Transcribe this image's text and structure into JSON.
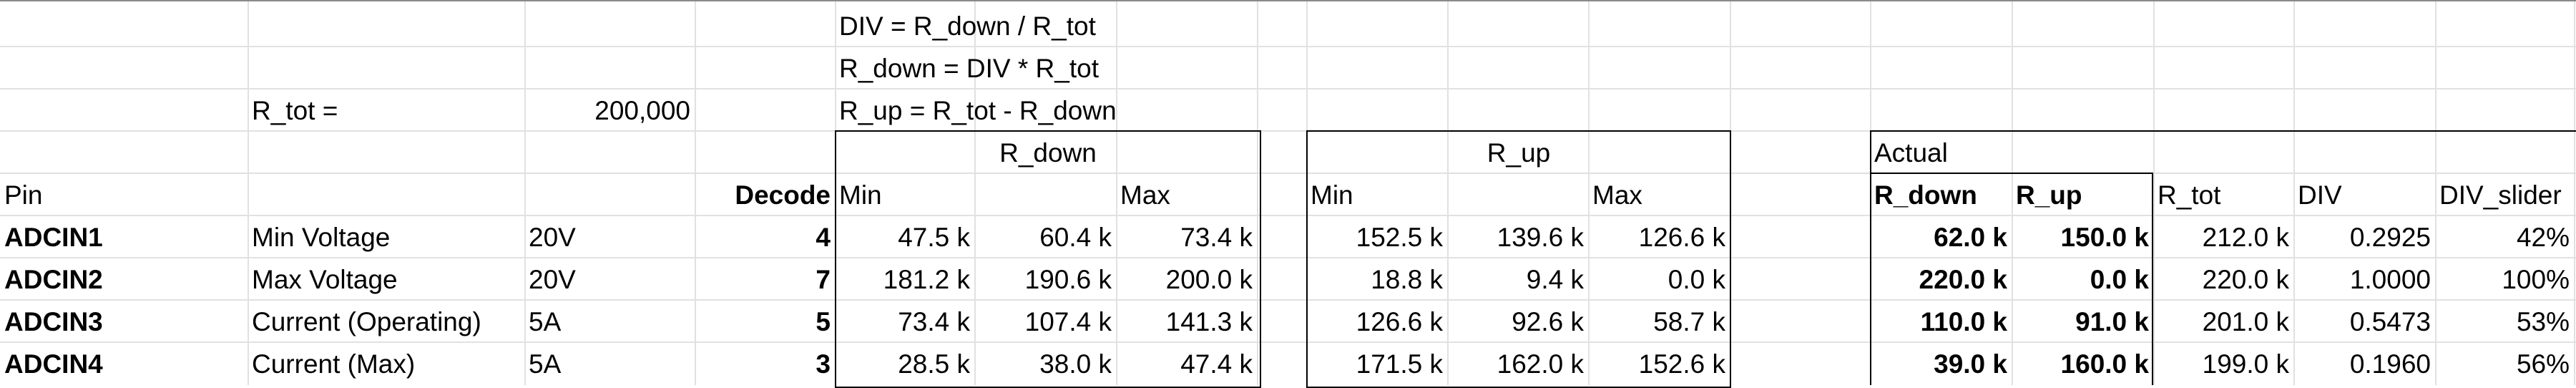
{
  "sheet": {
    "formulas": [
      "DIV  = R_down / R_tot",
      "R_down = DIV * R_tot",
      "R_up = R_tot - R_down"
    ],
    "rtot_label": "R_tot =",
    "rtot_value": "200,000",
    "group_rdown": "R_down",
    "group_rup": "R_up",
    "group_actual": "Actual",
    "headers": {
      "pin": "Pin",
      "decode": "Decode",
      "rdown_min": "Min",
      "rdown_max": "Max",
      "rup_min": "Min",
      "rup_max": "Max",
      "act_rdown": "R_down",
      "act_rup": "R_up",
      "act_rtot": "R_tot",
      "act_div": "DIV",
      "act_slider": "DIV_slider"
    },
    "rows": [
      {
        "pin": "ADCIN1",
        "desc": "Min Voltage",
        "rating": "20V",
        "decode": "4",
        "rdown": [
          "47.5 k",
          "60.4 k",
          "73.4 k"
        ],
        "rup": [
          "152.5 k",
          "139.6 k",
          "126.6 k"
        ],
        "act_rdown": "62.0 k",
        "act_rup": "150.0 k",
        "act_rtot": "212.0 k",
        "act_div": "0.2925",
        "act_slider": "42%"
      },
      {
        "pin": "ADCIN2",
        "desc": "Max Voltage",
        "rating": "20V",
        "decode": "7",
        "rdown": [
          "181.2 k",
          "190.6 k",
          "200.0 k"
        ],
        "rup": [
          "18.8 k",
          "9.4 k",
          "0.0 k"
        ],
        "act_rdown": "220.0 k",
        "act_rup": "0.0 k",
        "act_rtot": "220.0 k",
        "act_div": "1.0000",
        "act_slider": "100%"
      },
      {
        "pin": "ADCIN3",
        "desc": "Current (Operating)",
        "rating": "5A",
        "decode": "5",
        "rdown": [
          "73.4 k",
          "107.4 k",
          "141.3 k"
        ],
        "rup": [
          "126.6 k",
          "92.6 k",
          "58.7 k"
        ],
        "act_rdown": "110.0 k",
        "act_rup": "91.0 k",
        "act_rtot": "201.0 k",
        "act_div": "0.5473",
        "act_slider": "53%"
      },
      {
        "pin": "ADCIN4",
        "desc": "Current (Max)",
        "rating": "5A",
        "decode": "3",
        "rdown": [
          "28.5 k",
          "38.0 k",
          "47.4 k"
        ],
        "rup": [
          "171.5 k",
          "162.0 k",
          "152.6 k"
        ],
        "act_rdown": "39.0 k",
        "act_rup": "160.0 k",
        "act_rtot": "199.0 k",
        "act_div": "0.1960",
        "act_slider": "56%"
      }
    ]
  }
}
